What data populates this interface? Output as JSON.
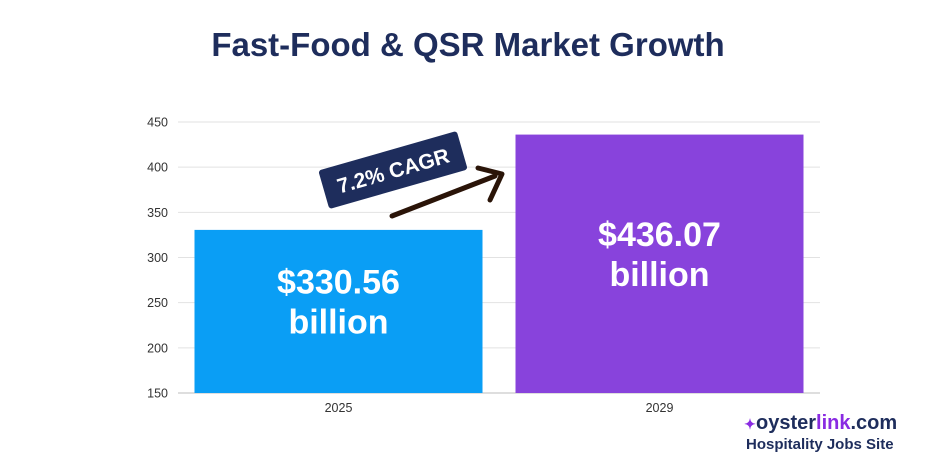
{
  "chart_data": {
    "type": "bar",
    "title": "Fast-Food & QSR Market Growth",
    "categories": [
      "2025",
      "2029"
    ],
    "values": [
      330.56,
      436.07
    ],
    "value_labels": [
      [
        "$330.56",
        "billion"
      ],
      [
        "$436.07",
        "billion"
      ]
    ],
    "bar_colors": [
      "#0a9ef5",
      "#8843dc"
    ],
    "ylim": [
      150,
      450
    ],
    "yticks": [
      150,
      200,
      250,
      300,
      350,
      400,
      450
    ],
    "grid": true,
    "annotation": {
      "text": "7.2% CAGR",
      "badge_color": "#1e2d5c",
      "arrow_color": "#2a1408"
    }
  },
  "brand": {
    "name_prefix": "oyster",
    "name_accent": "link",
    "name_suffix": ".com",
    "tagline": "Hospitality Jobs Site",
    "mark_icon": "oysterlink-logo-icon"
  }
}
